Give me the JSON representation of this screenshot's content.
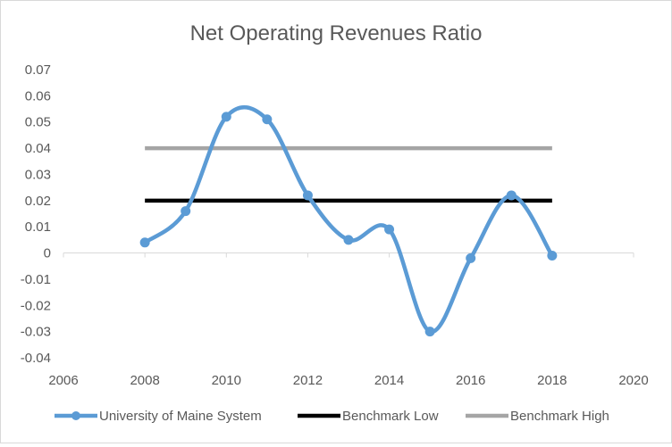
{
  "chart_data": {
    "type": "scatter",
    "title": "Net Operating Revenues Ratio",
    "xlabel": "",
    "ylabel": "",
    "xlim": [
      2006,
      2020
    ],
    "ylim": [
      -0.04,
      0.07
    ],
    "x_ticks": [
      "2006",
      "2008",
      "2010",
      "2012",
      "2014",
      "2016",
      "2018",
      "2020"
    ],
    "y_ticks": [
      "0.07",
      "0.06",
      "0.05",
      "0.04",
      "0.03",
      "0.02",
      "0.01",
      "0",
      "-0.01",
      "-0.02",
      "-0.03",
      "-0.04"
    ],
    "grid": false,
    "legend_position": "bottom",
    "series": [
      {
        "name": "University of Maine System",
        "color": "#5b9bd5",
        "smooth": true,
        "markers": true,
        "x": [
          2008,
          2009,
          2010,
          2011,
          2012,
          2013,
          2014,
          2015,
          2016,
          2017,
          2018
        ],
        "y": [
          0.004,
          0.016,
          0.052,
          0.051,
          0.022,
          0.005,
          0.009,
          -0.03,
          -0.002,
          0.022,
          -0.001
        ]
      },
      {
        "name": "Benchmark Low",
        "color": "#000000",
        "smooth": false,
        "markers": false,
        "x": [
          2008,
          2018
        ],
        "y": [
          0.02,
          0.02
        ]
      },
      {
        "name": "Benchmark High",
        "color": "#a5a5a5",
        "smooth": false,
        "markers": false,
        "x": [
          2008,
          2018
        ],
        "y": [
          0.04,
          0.04
        ]
      }
    ]
  }
}
